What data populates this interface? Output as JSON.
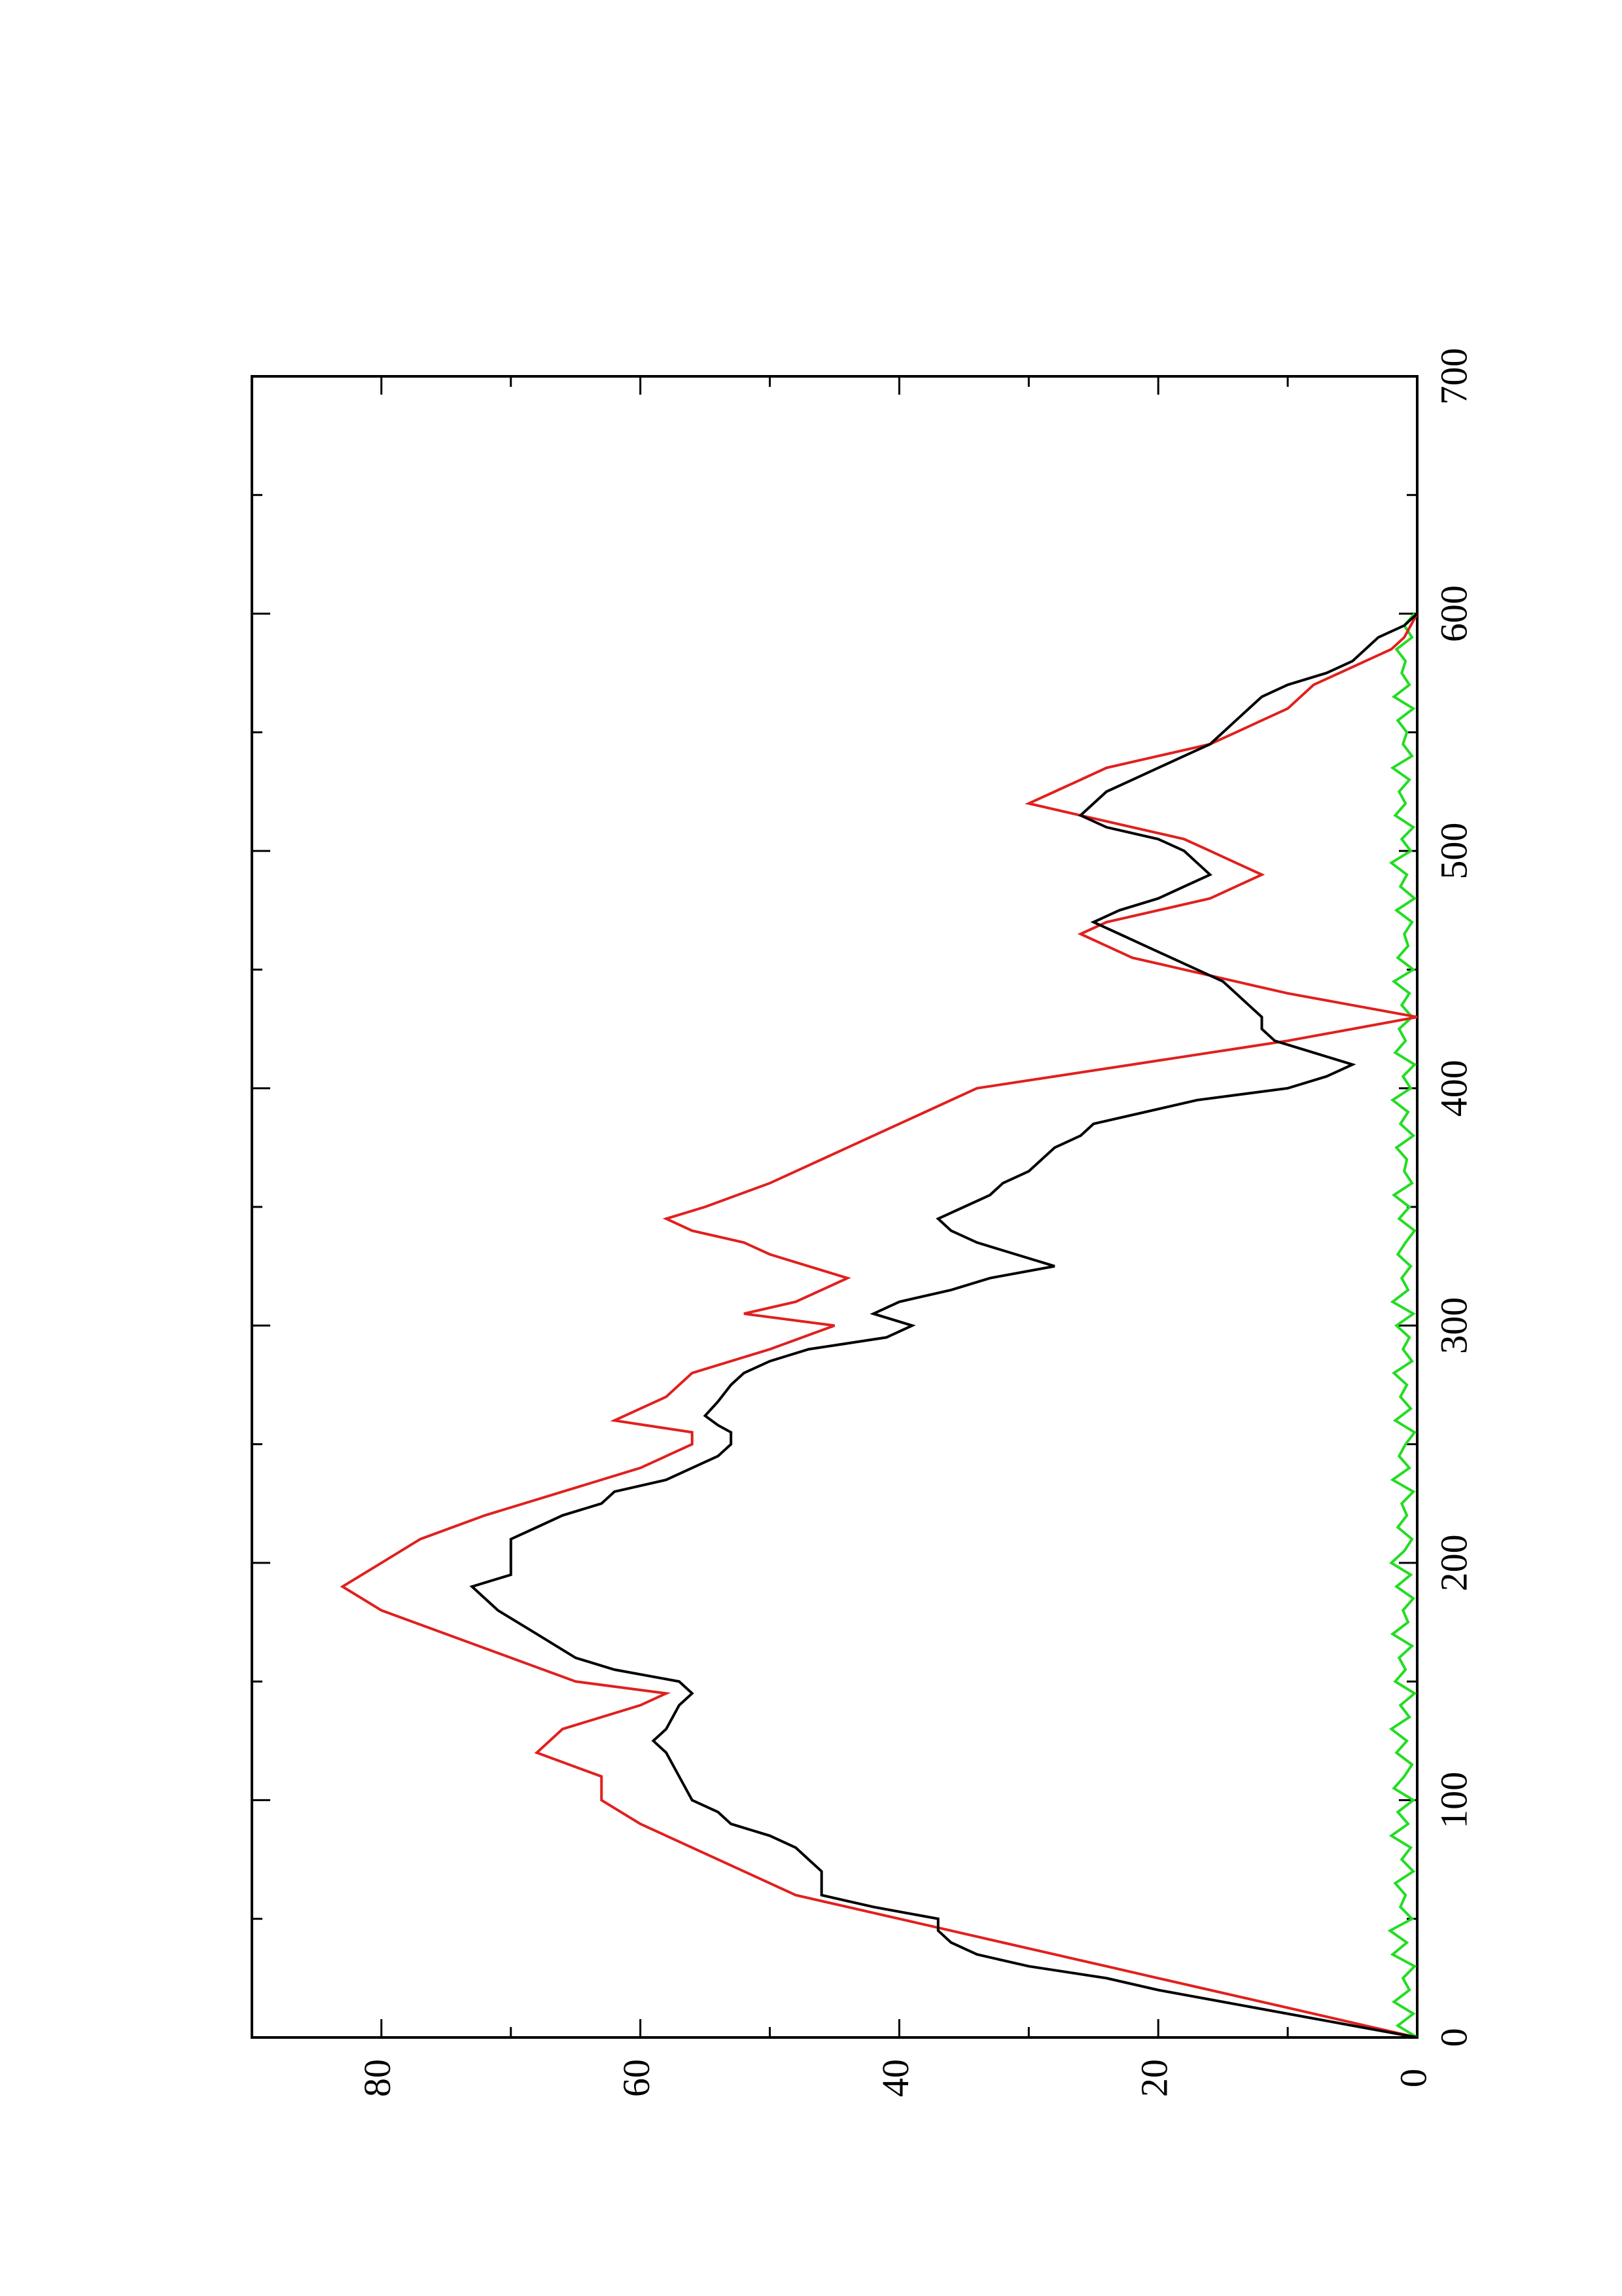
{
  "chart_data": {
    "type": "line",
    "x_axis": {
      "range": [
        0,
        700
      ],
      "ticks": [
        "0",
        "100",
        "200",
        "300",
        "400",
        "500",
        "600",
        "700"
      ]
    },
    "y_axis": {
      "range": [
        0,
        90
      ],
      "ticks": [
        "0",
        "20",
        "40",
        "60",
        "80"
      ]
    },
    "grid": false,
    "colors": {
      "black_series": "#000000",
      "red_series": "#e0201e",
      "green_series": "#22dd22"
    },
    "series": [
      {
        "color": "#000000",
        "x": [
          0,
          4,
          8,
          12,
          16,
          20,
          25,
          30,
          35,
          40,
          45,
          50,
          55,
          60,
          65,
          70,
          75,
          80,
          85,
          90,
          95,
          100,
          110,
          120,
          125,
          130,
          140,
          145,
          150,
          155,
          160,
          170,
          180,
          190,
          195,
          200,
          205,
          210,
          215,
          220,
          225,
          230,
          235,
          240,
          245,
          250,
          255,
          258,
          262,
          268,
          275,
          280,
          285,
          290,
          295,
          300,
          305,
          310,
          315,
          320,
          325,
          330,
          335,
          340,
          345,
          350,
          355,
          360,
          365,
          370,
          375,
          380,
          385,
          390,
          395,
          400,
          405,
          410,
          415,
          420,
          425,
          430,
          435,
          440,
          445,
          450,
          455,
          460,
          465,
          470,
          475,
          480,
          485,
          490,
          495,
          500,
          505,
          510,
          515,
          520,
          525,
          530,
          535,
          540,
          545,
          550,
          555,
          560,
          565,
          570,
          575,
          580,
          585,
          590,
          595,
          600
        ],
        "y": [
          0,
          4,
          8,
          12,
          16,
          20,
          24,
          30,
          34,
          36,
          37,
          37,
          42,
          46,
          46,
          46,
          47,
          48,
          50,
          53,
          54,
          56,
          57,
          58,
          59,
          58,
          57,
          56,
          57,
          62,
          65,
          68,
          71,
          73,
          70,
          70,
          70,
          70,
          68,
          66,
          63,
          62,
          58,
          56,
          54,
          53,
          53,
          54,
          55,
          54,
          53,
          52,
          50,
          47,
          41,
          39,
          42,
          40,
          36,
          33,
          28,
          31,
          34,
          36,
          37,
          35,
          33,
          32,
          30,
          29,
          28,
          26,
          25,
          21,
          17,
          10,
          7,
          5,
          8,
          11,
          12,
          12,
          13,
          14,
          15,
          17,
          19,
          21,
          23,
          25,
          23,
          20,
          18,
          16,
          17,
          18,
          20,
          24,
          26,
          25,
          24,
          22,
          20,
          18,
          16,
          15,
          14,
          13,
          12,
          10,
          7,
          5,
          4,
          3,
          1,
          0
        ]
      },
      {
        "color": "#e0201e",
        "x": [
          0,
          5,
          10,
          15,
          20,
          25,
          30,
          35,
          40,
          45,
          50,
          55,
          60,
          70,
          80,
          90,
          100,
          110,
          120,
          130,
          140,
          145,
          150,
          160,
          170,
          180,
          190,
          200,
          210,
          220,
          230,
          240,
          250,
          255,
          260,
          270,
          280,
          290,
          300,
          305,
          310,
          320,
          330,
          335,
          340,
          345,
          350,
          360,
          370,
          380,
          390,
          400,
          405,
          410,
          415,
          420,
          425,
          430,
          435,
          440,
          445,
          450,
          455,
          460,
          465,
          470,
          475,
          480,
          490,
          495,
          500,
          505,
          510,
          515,
          520,
          525,
          530,
          535,
          540,
          545,
          550,
          555,
          560,
          570,
          575,
          580,
          585,
          590,
          600
        ],
        "y": [
          0,
          4,
          8,
          12,
          16,
          20,
          24,
          28,
          32,
          36,
          40,
          44,
          48,
          52,
          56,
          60,
          63,
          63,
          68,
          66,
          60,
          58,
          65,
          70,
          75,
          80,
          83,
          80,
          77,
          72,
          66,
          60,
          56,
          56,
          62,
          58,
          56,
          50,
          45,
          52,
          48,
          44,
          50,
          52,
          56,
          58,
          55,
          50,
          46,
          42,
          38,
          34,
          28,
          22,
          16,
          10,
          5,
          0,
          5,
          10,
          14,
          18,
          22,
          24,
          26,
          24,
          20,
          16,
          12,
          14,
          16,
          18,
          22,
          26,
          30,
          28,
          26,
          24,
          20,
          16,
          14,
          12,
          10,
          8,
          6,
          4,
          2,
          1,
          0
        ]
      },
      {
        "color": "#22dd22",
        "x": [
          0,
          5,
          10,
          15,
          20,
          25,
          30,
          35,
          40,
          45,
          50,
          55,
          60,
          65,
          70,
          75,
          80,
          85,
          90,
          95,
          100,
          105,
          110,
          115,
          120,
          125,
          130,
          135,
          140,
          145,
          150,
          155,
          160,
          165,
          170,
          175,
          180,
          185,
          190,
          195,
          200,
          205,
          210,
          215,
          220,
          225,
          230,
          235,
          240,
          245,
          250,
          255,
          260,
          265,
          270,
          275,
          280,
          285,
          290,
          295,
          300,
          305,
          310,
          315,
          320,
          325,
          330,
          335,
          340,
          345,
          350,
          355,
          360,
          365,
          370,
          375,
          380,
          385,
          390,
          395,
          400,
          405,
          410,
          415,
          420,
          425,
          430,
          435,
          440,
          445,
          450,
          455,
          460,
          465,
          470,
          475,
          480,
          485,
          490,
          495,
          500,
          505,
          510,
          515,
          520,
          525,
          530,
          535,
          540,
          545,
          550,
          555,
          560,
          565,
          570,
          575,
          580,
          585,
          590,
          595,
          600
        ],
        "y": [
          0,
          1.5,
          0.3,
          1.8,
          0.6,
          1.1,
          0.2,
          1.9,
          0.8,
          2.1,
          0.4,
          1.3,
          0.9,
          1.7,
          0.3,
          1.2,
          0.5,
          2.0,
          0.7,
          1.5,
          0.3,
          1.8,
          1.0,
          0.4,
          1.6,
          0.8,
          2.0,
          0.6,
          1.3,
          0.2,
          1.7,
          0.9,
          1.4,
          0.4,
          1.9,
          0.7,
          1.1,
          0.3,
          1.6,
          0.5,
          2.0,
          1.0,
          0.4,
          1.5,
          0.8,
          1.2,
          0.3,
          1.9,
          0.6,
          1.4,
          0.9,
          0.2,
          1.7,
          0.5,
          1.3,
          0.8,
          1.8,
          0.4,
          1.1,
          0.6,
          1.6,
          0.3,
          1.9,
          0.7,
          1.2,
          0.5,
          1.5,
          0.9,
          0.2,
          1.4,
          0.6,
          1.8,
          0.4,
          1.0,
          0.8,
          1.6,
          0.3,
          1.3,
          0.7,
          1.9,
          0.5,
          1.1,
          0.2,
          1.7,
          0.9,
          1.4,
          0.4,
          1.2,
          0.6,
          1.8,
          0.3,
          1.5,
          0.7,
          1.0,
          0.4,
          1.6,
          0.2,
          1.3,
          0.8,
          2.0,
          0.5,
          1.2,
          0.3,
          1.7,
          0.9,
          1.4,
          0.6,
          1.9,
          0.4,
          1.1,
          0.8,
          1.5,
          0.3,
          1.8,
          0.6,
          1.2,
          0.9,
          1.6,
          0.4,
          1.0,
          0.2
        ]
      }
    ]
  }
}
